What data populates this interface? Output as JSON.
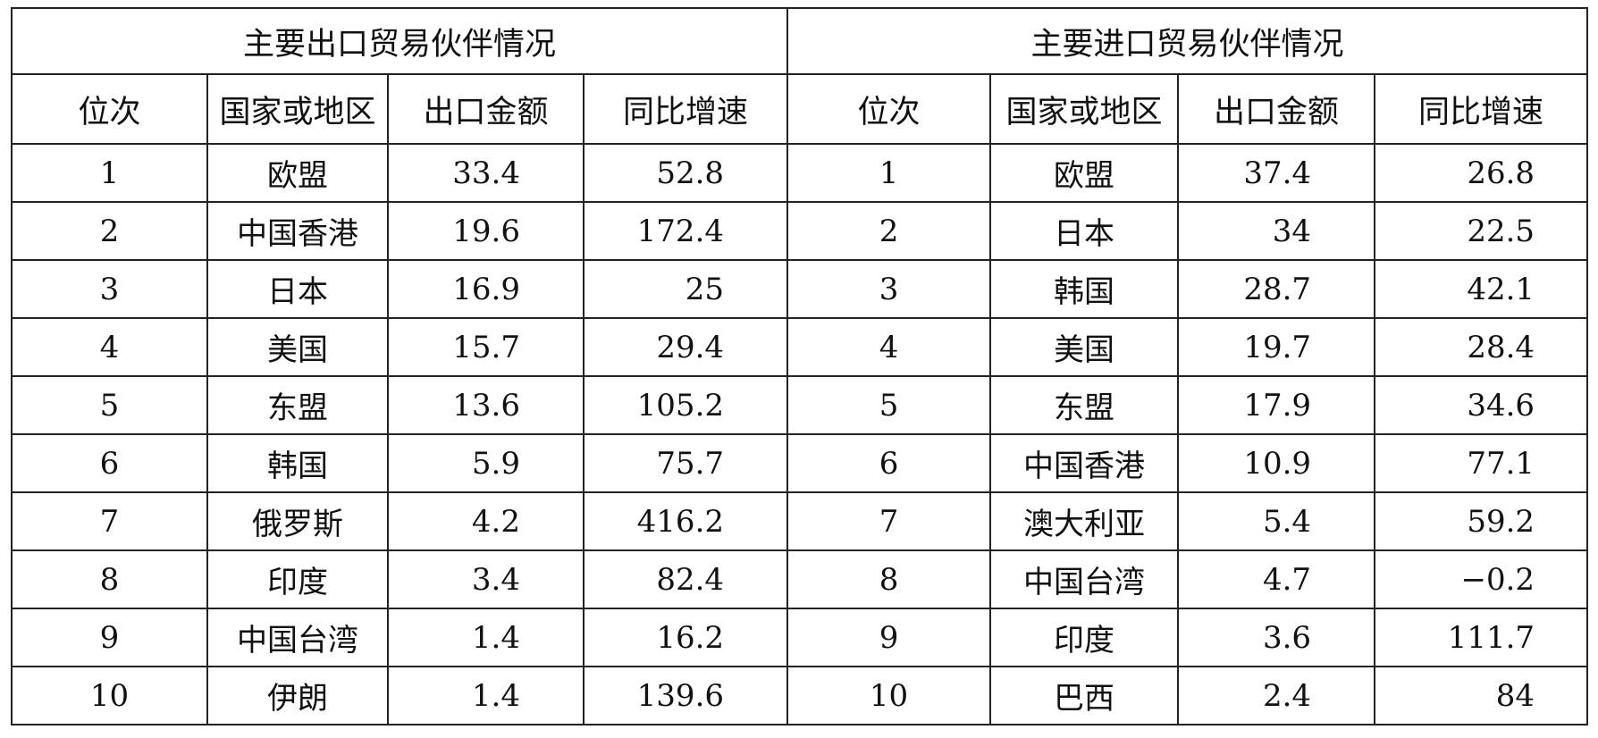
{
  "export_section": {
    "title": "主要出口贸易伙伴情况",
    "headers": [
      "位次",
      "国家或地区",
      "出口金额",
      "同比增速"
    ],
    "rows": [
      {
        "rank": "1",
        "country": "欧盟",
        "amount": "33.4",
        "growth": "52.8"
      },
      {
        "rank": "2",
        "country": "中国香港",
        "amount": "19.6",
        "growth": "172.4"
      },
      {
        "rank": "3",
        "country": "日本",
        "amount": "16.9",
        "growth": "25"
      },
      {
        "rank": "4",
        "country": "美国",
        "amount": "15.7",
        "growth": "29.4"
      },
      {
        "rank": "5",
        "country": "东盟",
        "amount": "13.6",
        "growth": "105.2"
      },
      {
        "rank": "6",
        "country": "韩国",
        "amount": "5.9",
        "growth": "75.7"
      },
      {
        "rank": "7",
        "country": "俄罗斯",
        "amount": "4.2",
        "growth": "416.2"
      },
      {
        "rank": "8",
        "country": "印度",
        "amount": "3.4",
        "growth": "82.4"
      },
      {
        "rank": "9",
        "country": "中国台湾",
        "amount": "1.4",
        "growth": "16.2"
      },
      {
        "rank": "10",
        "country": "伊朗",
        "amount": "1.4",
        "growth": "139.6"
      }
    ]
  },
  "import_section": {
    "title": "主要进口贸易伙伴情况",
    "headers": [
      "位次",
      "国家或地区",
      "出口金额",
      "同比增速"
    ],
    "rows": [
      {
        "rank": "1",
        "country": "欧盟",
        "amount": "37.4",
        "growth": "26.8"
      },
      {
        "rank": "2",
        "country": "日本",
        "amount": "34",
        "growth": "22.5"
      },
      {
        "rank": "3",
        "country": "韩国",
        "amount": "28.7",
        "growth": "42.1"
      },
      {
        "rank": "4",
        "country": "美国",
        "amount": "19.7",
        "growth": "28.4"
      },
      {
        "rank": "5",
        "country": "东盟",
        "amount": "17.9",
        "growth": "34.6"
      },
      {
        "rank": "6",
        "country": "中国香港",
        "amount": "10.9",
        "growth": "77.1"
      },
      {
        "rank": "7",
        "country": "澳大利亚",
        "amount": "5.4",
        "growth": "59.2"
      },
      {
        "rank": "8",
        "country": "中国台湾",
        "amount": "4.7",
        "growth": "−0.2"
      },
      {
        "rank": "9",
        "country": "印度",
        "amount": "3.6",
        "growth": "111.7"
      },
      {
        "rank": "10",
        "country": "巴西",
        "amount": "2.4",
        "growth": "84"
      }
    ]
  },
  "chart_data": {
    "type": "table",
    "columns": [
      "位次",
      "国家或地区",
      "出口金额",
      "同比增速",
      "位次",
      "国家或地区",
      "出口金额",
      "同比增速"
    ]
  }
}
